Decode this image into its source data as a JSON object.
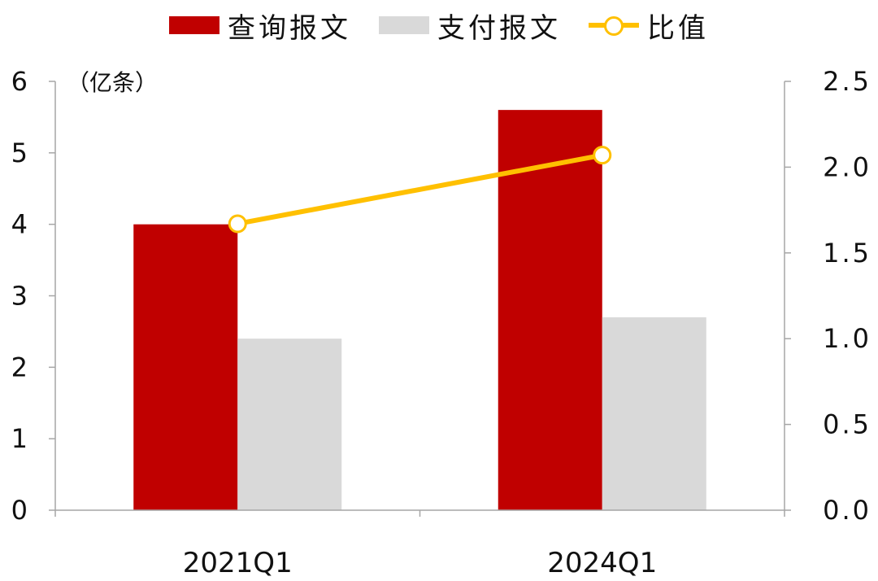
{
  "legend": [
    {
      "label": "查询报文",
      "color": "#C00000",
      "kind": "bar"
    },
    {
      "label": "支付报文",
      "color": "#D9D9D9",
      "kind": "bar"
    },
    {
      "label": "比值",
      "color": "#FFC000",
      "kind": "line"
    }
  ],
  "unit_label": "（亿条）",
  "chart_data": {
    "type": "bar",
    "categories": [
      "2021Q1",
      "2024Q1"
    ],
    "series": [
      {
        "name": "查询报文",
        "type": "bar",
        "axis": "left",
        "color": "#C00000",
        "values": [
          4.0,
          5.6
        ]
      },
      {
        "name": "支付报文",
        "type": "bar",
        "axis": "left",
        "color": "#D9D9D9",
        "values": [
          2.4,
          2.7
        ]
      },
      {
        "name": "比值",
        "type": "line",
        "axis": "right",
        "color": "#FFC000",
        "values": [
          1.67,
          2.07
        ]
      }
    ],
    "y_left": {
      "min": 0,
      "max": 6,
      "ticks": [
        "0",
        "1",
        "2",
        "3",
        "4",
        "5",
        "6"
      ]
    },
    "y_right": {
      "min": 0,
      "max": 2.5,
      "ticks": [
        "0.0",
        "0.5",
        "1.0",
        "1.5",
        "2.0",
        "2.5"
      ]
    },
    "grid": false,
    "legend_position": "top"
  }
}
